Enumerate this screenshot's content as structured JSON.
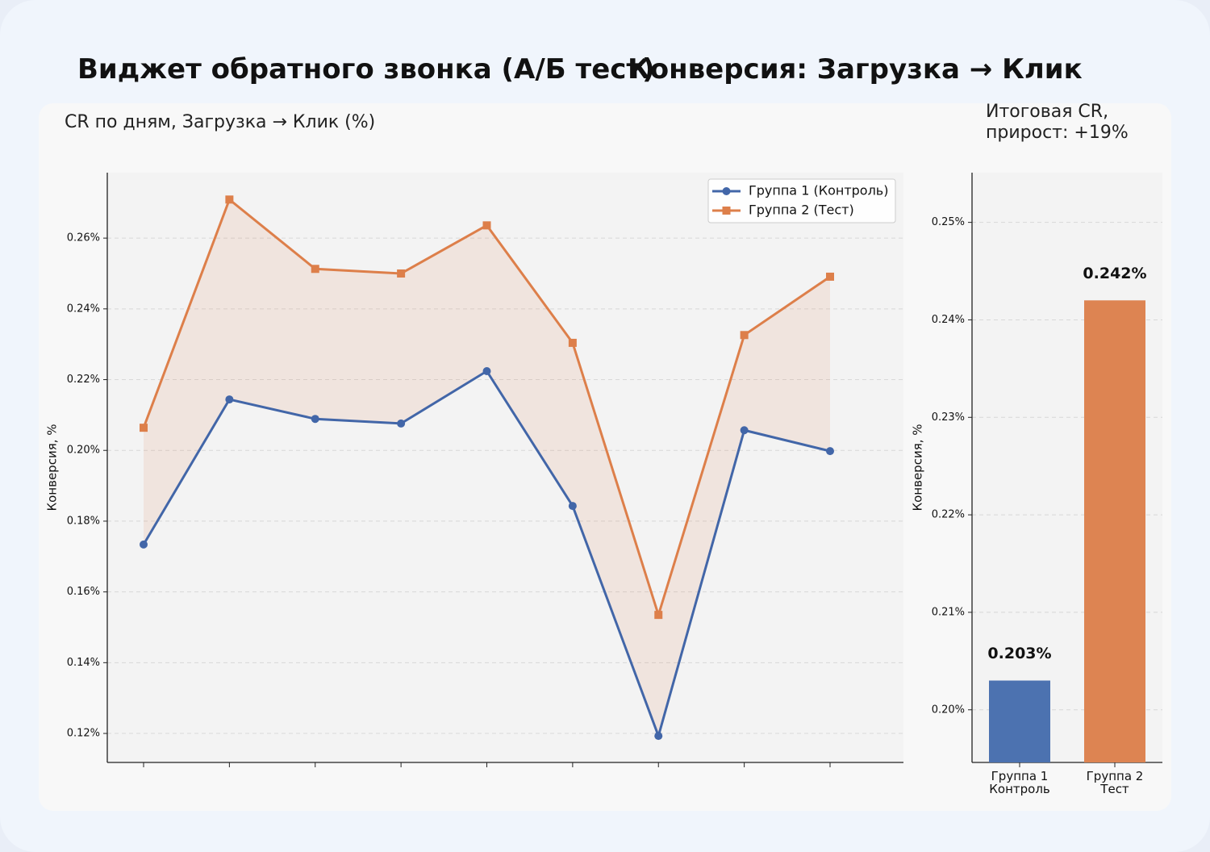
{
  "header": {
    "title": "Виджет обратного звонка (А/Б тест)",
    "subtitle": "Конверсия: Загрузка → Клик"
  },
  "chart_data": [
    {
      "type": "line",
      "title": "CR по дням, Загрузка → Клик (%)",
      "y_label": "Конверсия, %",
      "categories": [
        null,
        null,
        null,
        null,
        null,
        null,
        null,
        null,
        null
      ],
      "series": [
        {
          "name": "Группа 1 (Контроль)",
          "color": "#4266a8",
          "marker": "circle",
          "values": [
            0.1734,
            0.2144,
            0.2089,
            0.2076,
            0.2224,
            0.1843,
            0.1193,
            0.2057,
            0.1998
          ]
        },
        {
          "name": "Группа 2 (Тест)",
          "color": "#dd7f4a",
          "marker": "square",
          "values": [
            0.2064,
            0.2709,
            0.2513,
            0.25,
            0.2636,
            0.2304,
            0.1535,
            0.2326,
            0.2491
          ]
        }
      ],
      "fill_between": true,
      "ylim": [
        0.1118,
        0.2785
      ],
      "yticks": [
        {
          "value": 0.12,
          "label": "0.12%"
        },
        {
          "value": 0.14,
          "label": "0.14%"
        },
        {
          "value": 0.16,
          "label": "0.16%"
        },
        {
          "value": 0.18,
          "label": "0.18%"
        },
        {
          "value": 0.2,
          "label": "0.20%"
        },
        {
          "value": 0.22,
          "label": "0.22%"
        },
        {
          "value": 0.24,
          "label": "0.24%"
        },
        {
          "value": 0.26,
          "label": "0.26%"
        }
      ],
      "grid": true,
      "legend": "upper right"
    },
    {
      "type": "bar",
      "title": "Итоговая CR, прирост: +19%",
      "y_label": "Конверсия, %",
      "categories": [
        "Группа 1\nКонтроль",
        "Группа 2\nТест"
      ],
      "values": [
        0.203,
        0.242
      ],
      "value_labels": [
        "0.203%",
        "0.242%"
      ],
      "colors": [
        "#4c72b0",
        "#dd8452"
      ],
      "ylim": [
        0.1946,
        0.2551
      ],
      "yticks": [
        {
          "value": 0.2,
          "label": "0.20%"
        },
        {
          "value": 0.21,
          "label": "0.21%"
        },
        {
          "value": 0.22,
          "label": "0.22%"
        },
        {
          "value": 0.23,
          "label": "0.23%"
        },
        {
          "value": 0.24,
          "label": "0.24%"
        },
        {
          "value": 0.25,
          "label": "0.25%"
        }
      ],
      "grid": true
    }
  ]
}
